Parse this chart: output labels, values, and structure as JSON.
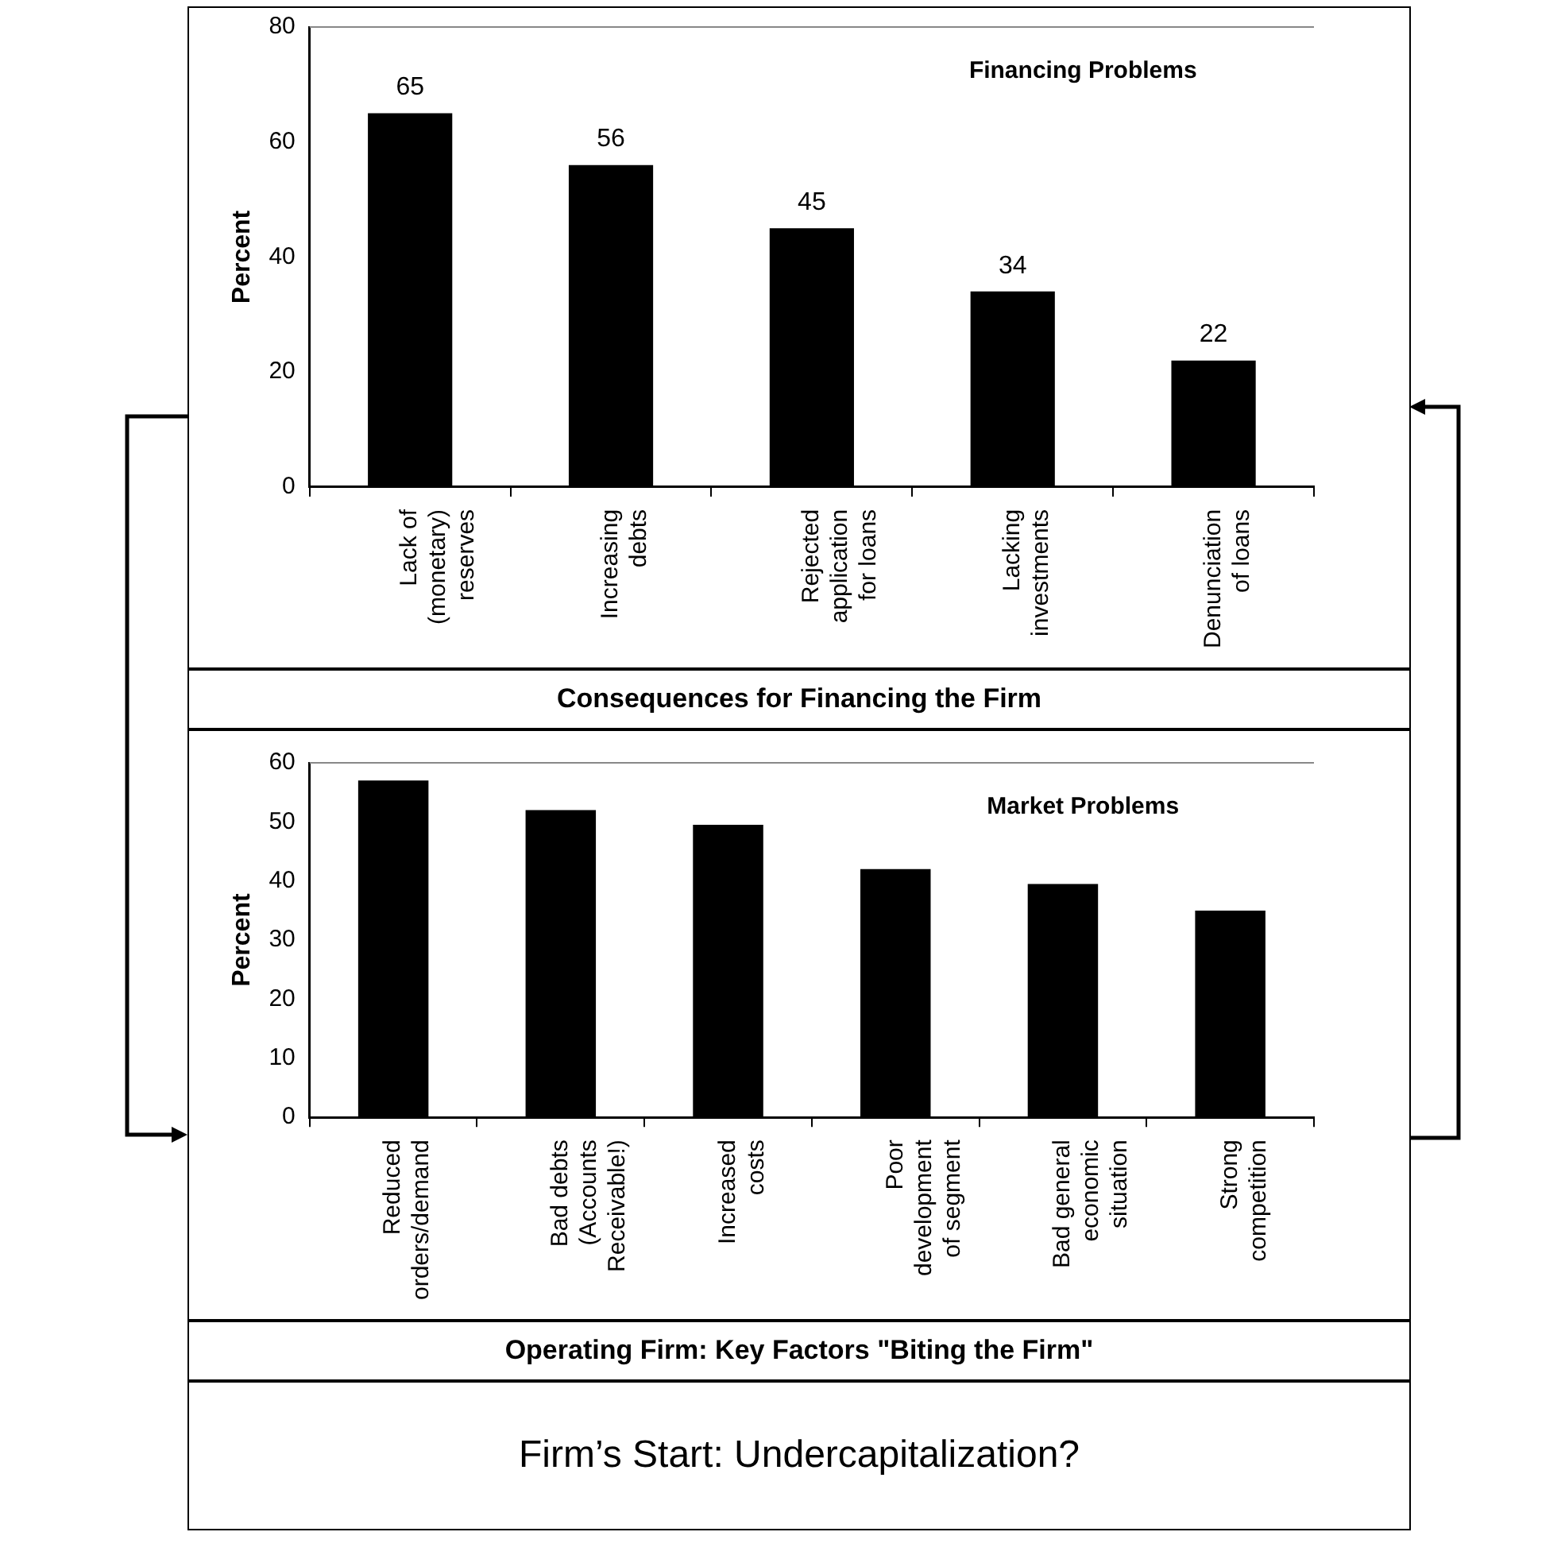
{
  "chart_data": [
    {
      "type": "bar",
      "title": "Financing Problems",
      "ylabel": "Percent",
      "categories": [
        "Lack of (monetary) reserves",
        "Increasing debts",
        "Rejected application for loans",
        "Lacking investments",
        "Denunciation of loans"
      ],
      "values": [
        65,
        56,
        45,
        34,
        22
      ],
      "color": "#000000",
      "ylim": [
        0,
        80
      ],
      "yticks": [
        0,
        20,
        40,
        60,
        80
      ],
      "data_labels": true,
      "annotations": [
        "Consequences for  Financing the Firm"
      ]
    },
    {
      "type": "bar",
      "title": "Market Problems",
      "ylabel": "Percent",
      "categories": [
        "Reduced orders/demand",
        "Bad debts (Accounts Receivable!)",
        "Increased costs",
        "Poor development of segment",
        "Bad general economic situation",
        "Strong competition"
      ],
      "values": [
        57,
        52,
        49.5,
        42,
        39.5,
        35
      ],
      "color": "#000000",
      "ylim": [
        0,
        60
      ],
      "yticks": [
        0,
        10,
        20,
        30,
        40,
        50,
        60
      ],
      "annotations": [
        "Operating Firm: Key Factors \"Biting the Firm\"",
        "Firm’s Start: Undercapitalization?"
      ]
    }
  ]
}
